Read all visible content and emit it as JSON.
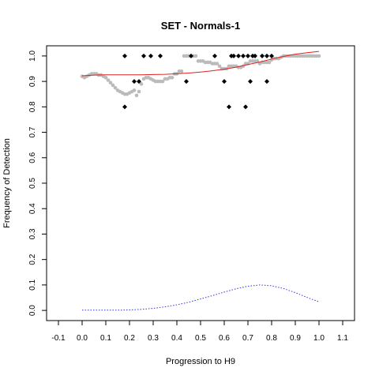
{
  "chart_data": {
    "type": "scatter",
    "title": "SET - Normals-1",
    "xlabel": "Progression to H9",
    "ylabel": "Frequency of Detection",
    "xlim": [
      -0.15,
      1.15
    ],
    "ylim": [
      -0.04,
      1.04
    ],
    "x_ticks": [
      -0.1,
      0.0,
      0.1,
      0.2,
      0.3,
      0.4,
      0.5,
      0.6,
      0.7,
      0.8,
      0.9,
      1.0,
      1.1
    ],
    "x_tick_labels": [
      "-0.1",
      "0.0",
      "0.1",
      "0.2",
      "0.3",
      "0.4",
      "0.5",
      "0.6",
      "0.7",
      "0.8",
      "0.9",
      "1.0",
      "1.1"
    ],
    "y_ticks": [
      0.0,
      0.1,
      0.2,
      0.3,
      0.4,
      0.5,
      0.6,
      0.7,
      0.8,
      0.9,
      1.0
    ],
    "y_tick_labels": [
      "0.0",
      "0.1",
      "0.2",
      "0.3",
      "0.4",
      "0.5",
      "0.6",
      "0.7",
      "0.8",
      "0.9",
      "1.0"
    ],
    "grid": false,
    "colors": {
      "observed": "#000000",
      "smoothed": "#bbbbbb",
      "fit": "#dd2222",
      "density": "#3333dd"
    },
    "series": [
      {
        "kind": "points",
        "style": "black-diamonds",
        "x": [
          0.18,
          0.18,
          0.22,
          0.24,
          0.26,
          0.29,
          0.33,
          0.44,
          0.46,
          0.56,
          0.6,
          0.62,
          0.63,
          0.64,
          0.66,
          0.68,
          0.69,
          0.7,
          0.71,
          0.72,
          0.73,
          0.76,
          0.78,
          0.78,
          0.8
        ],
        "y": [
          1.0,
          0.8,
          0.9,
          0.9,
          1.0,
          1.0,
          1.0,
          0.9,
          1.0,
          1.0,
          0.9,
          0.8,
          1.0,
          1.0,
          1.0,
          1.0,
          0.8,
          1.0,
          0.9,
          1.0,
          1.0,
          1.0,
          1.0,
          0.9,
          1.0
        ]
      },
      {
        "kind": "points",
        "style": "grey-smoothed",
        "x": [
          0.0,
          0.01,
          0.02,
          0.03,
          0.04,
          0.05,
          0.06,
          0.07,
          0.08,
          0.09,
          0.1,
          0.11,
          0.12,
          0.13,
          0.14,
          0.15,
          0.16,
          0.17,
          0.18,
          0.19,
          0.2,
          0.21,
          0.22,
          0.23,
          0.24,
          0.25,
          0.26,
          0.27,
          0.28,
          0.29,
          0.3,
          0.31,
          0.32,
          0.33,
          0.34,
          0.35,
          0.36,
          0.37,
          0.38,
          0.39,
          0.4,
          0.41,
          0.42,
          0.43,
          0.44,
          0.45,
          0.46,
          0.47,
          0.48,
          0.49,
          0.5,
          0.51,
          0.52,
          0.53,
          0.54,
          0.55,
          0.56,
          0.57,
          0.58,
          0.59,
          0.6,
          0.61,
          0.62,
          0.63,
          0.64,
          0.65,
          0.66,
          0.67,
          0.68,
          0.69,
          0.7,
          0.71,
          0.72,
          0.73,
          0.74,
          0.75,
          0.76,
          0.77,
          0.78,
          0.79,
          0.8,
          0.81,
          0.82,
          0.83,
          0.84,
          0.85,
          0.86,
          0.87,
          0.88,
          0.89,
          0.9,
          0.91,
          0.92,
          0.93,
          0.94,
          0.95,
          0.96,
          0.97,
          0.98,
          0.99,
          1.0
        ],
        "y": [
          0.92,
          0.915,
          0.92,
          0.925,
          0.93,
          0.93,
          0.93,
          0.925,
          0.925,
          0.92,
          0.915,
          0.905,
          0.895,
          0.885,
          0.875,
          0.865,
          0.86,
          0.855,
          0.85,
          0.85,
          0.855,
          0.86,
          0.865,
          0.845,
          0.86,
          0.89,
          0.91,
          0.915,
          0.915,
          0.91,
          0.905,
          0.9,
          0.9,
          0.9,
          0.9,
          0.91,
          0.91,
          0.915,
          0.915,
          0.93,
          0.93,
          0.94,
          0.94,
          1.0,
          1.0,
          1.0,
          1.0,
          1.0,
          1.0,
          0.98,
          0.98,
          0.98,
          0.975,
          0.975,
          0.975,
          0.97,
          0.97,
          0.97,
          0.96,
          0.95,
          0.95,
          0.95,
          0.96,
          0.96,
          0.96,
          0.96,
          0.955,
          0.955,
          0.96,
          0.97,
          0.97,
          0.98,
          0.98,
          0.98,
          0.98,
          0.97,
          0.975,
          0.975,
          0.975,
          0.975,
          0.985,
          0.99,
          0.99,
          0.99,
          0.995,
          1.0,
          1.0,
          1.0,
          1.0,
          1.0,
          1.0,
          1.0,
          1.0,
          1.0,
          1.0,
          1.0,
          1.0,
          1.0,
          1.0,
          1.0,
          1.0
        ]
      },
      {
        "kind": "line",
        "style": "red-solid",
        "x": [
          0.0,
          0.05,
          0.1,
          0.15,
          0.2,
          0.25,
          0.3,
          0.35,
          0.4,
          0.45,
          0.5,
          0.55,
          0.6,
          0.65,
          0.7,
          0.75,
          0.8,
          0.85,
          0.9,
          0.95,
          1.0
        ],
        "y": [
          0.922,
          0.925,
          0.926,
          0.926,
          0.926,
          0.926,
          0.927,
          0.928,
          0.93,
          0.933,
          0.937,
          0.942,
          0.948,
          0.956,
          0.966,
          0.976,
          0.988,
          0.998,
          1.007,
          1.013,
          1.018
        ]
      },
      {
        "kind": "line",
        "style": "blue-dotted",
        "x": [
          0.0,
          0.05,
          0.1,
          0.15,
          0.2,
          0.25,
          0.3,
          0.35,
          0.4,
          0.45,
          0.5,
          0.55,
          0.6,
          0.65,
          0.7,
          0.75,
          0.8,
          0.85,
          0.9,
          0.95,
          1.0
        ],
        "y": [
          0.001,
          0.001,
          0.001,
          0.001,
          0.002,
          0.004,
          0.008,
          0.014,
          0.022,
          0.032,
          0.045,
          0.058,
          0.072,
          0.085,
          0.095,
          0.1,
          0.097,
          0.086,
          0.07,
          0.051,
          0.034
        ]
      }
    ]
  }
}
